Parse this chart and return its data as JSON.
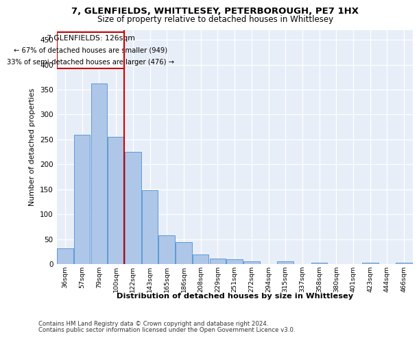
{
  "title1": "7, GLENFIELDS, WHITTLESEY, PETERBOROUGH, PE7 1HX",
  "title2": "Size of property relative to detached houses in Whittlesey",
  "xlabel": "Distribution of detached houses by size in Whittlesey",
  "ylabel": "Number of detached properties",
  "categories": [
    "36sqm",
    "57sqm",
    "79sqm",
    "100sqm",
    "122sqm",
    "143sqm",
    "165sqm",
    "186sqm",
    "208sqm",
    "229sqm",
    "251sqm",
    "272sqm",
    "294sqm",
    "315sqm",
    "337sqm",
    "358sqm",
    "380sqm",
    "401sqm",
    "423sqm",
    "444sqm",
    "466sqm"
  ],
  "values": [
    32,
    260,
    362,
    255,
    225,
    148,
    57,
    44,
    19,
    11,
    9,
    6,
    0,
    6,
    0,
    3,
    0,
    0,
    3,
    0,
    3
  ],
  "bar_color": "#aec6e8",
  "bar_edgecolor": "#5b9bd5",
  "marker_bin_index": 4,
  "marker_label": "7 GLENFIELDS: 126sqm",
  "annotation_line1": "← 67% of detached houses are smaller (949)",
  "annotation_line2": "33% of semi-detached houses are larger (476) →",
  "red_color": "#cc0000",
  "ylim": [
    0,
    470
  ],
  "yticks": [
    0,
    50,
    100,
    150,
    200,
    250,
    300,
    350,
    400,
    450
  ],
  "footer1": "Contains HM Land Registry data © Crown copyright and database right 2024.",
  "footer2": "Contains public sector information licensed under the Open Government Licence v3.0.",
  "plot_bg": "#e8eef8"
}
